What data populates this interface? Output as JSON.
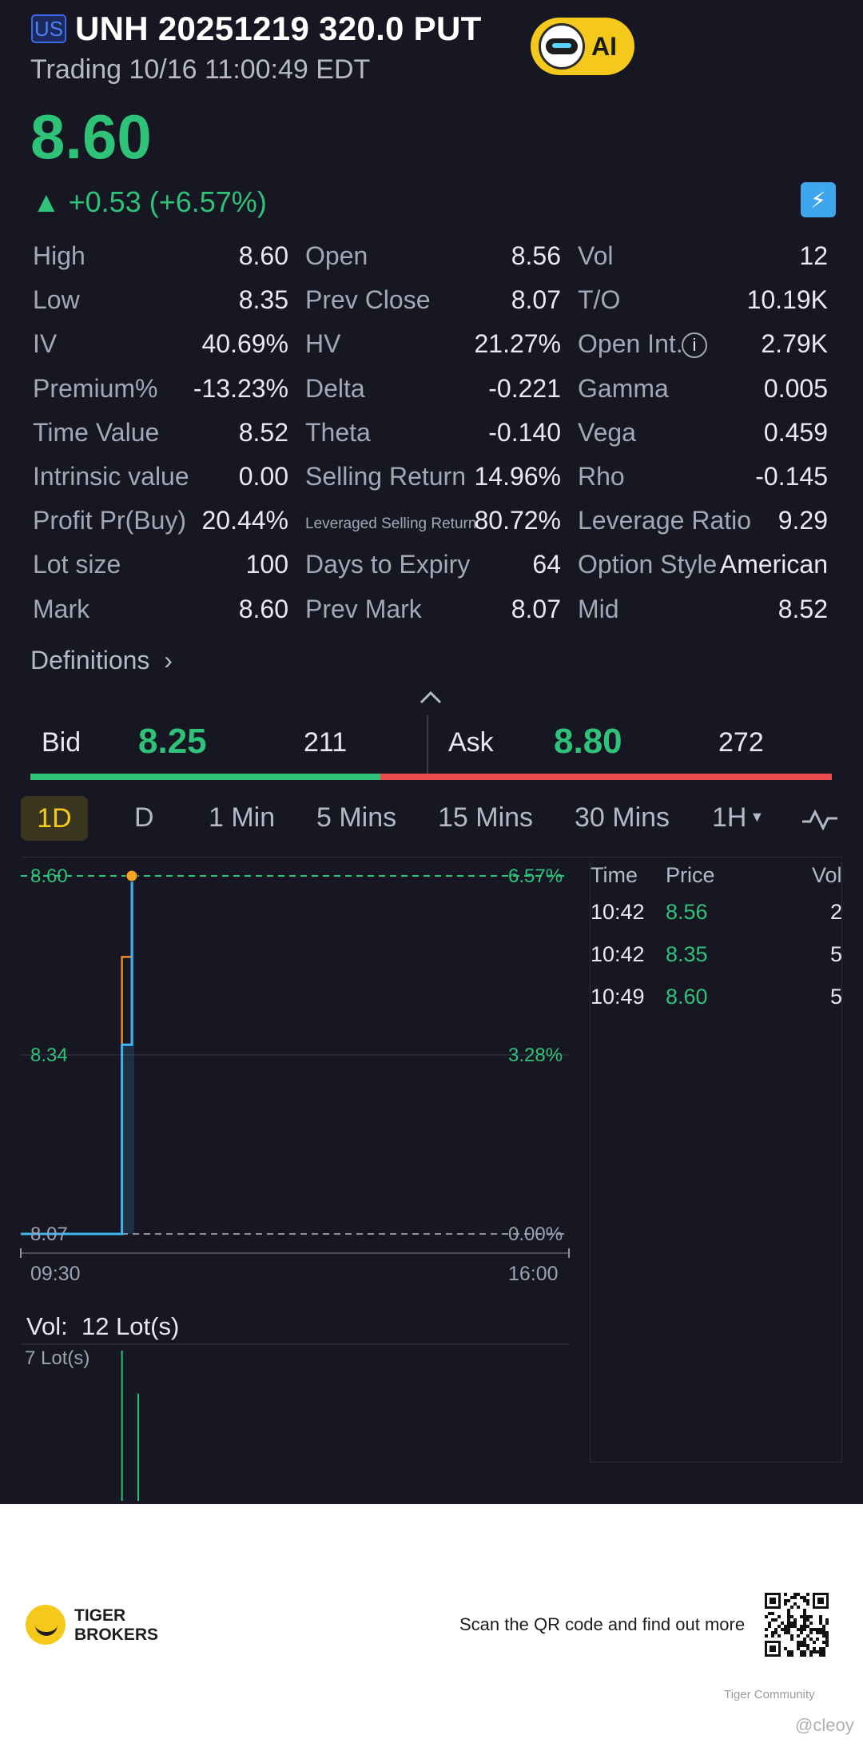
{
  "header": {
    "market_badge": "US",
    "title": "UNH 20251219 320.0 PUT",
    "status": "Trading 10/16 11:00:49 EDT",
    "ai_label": "AI"
  },
  "quote": {
    "price": "8.60",
    "change": "▲ +0.53 (+6.57%)",
    "lightning_icon": "lightning-icon"
  },
  "stats": [
    [
      {
        "label": "High",
        "value": "8.60"
      },
      {
        "label": "Open",
        "value": "8.56"
      },
      {
        "label": "Vol",
        "value": "12"
      }
    ],
    [
      {
        "label": "Low",
        "value": "8.35"
      },
      {
        "label": "Prev Close",
        "value": "8.07"
      },
      {
        "label": "T/O",
        "value": "10.19K"
      }
    ],
    [
      {
        "label": "IV",
        "value": "40.69%"
      },
      {
        "label": "HV",
        "value": "21.27%"
      },
      {
        "label": "Open Int.",
        "value": "2.79K"
      }
    ],
    [
      {
        "label": "Premium%",
        "value": "-13.23%"
      },
      {
        "label": "Delta",
        "value": "-0.221"
      },
      {
        "label": "Gamma",
        "value": "0.005"
      }
    ],
    [
      {
        "label": "Time Value",
        "value": "8.52"
      },
      {
        "label": "Theta",
        "value": "-0.140"
      },
      {
        "label": "Vega",
        "value": "0.459"
      }
    ],
    [
      {
        "label": "Intrinsic value",
        "value": "0.00"
      },
      {
        "label": "Selling Return",
        "value": "14.96%"
      },
      {
        "label": "Rho",
        "value": "-0.145"
      }
    ],
    [
      {
        "label": "Profit Pr(Buy)",
        "value": "20.44%"
      },
      {
        "label": "Leveraged Selling Return",
        "value": "80.72%"
      },
      {
        "label": "Leverage Ratio",
        "value": "9.29"
      }
    ],
    [
      {
        "label": "Lot size",
        "value": "100"
      },
      {
        "label": "Days to Expiry",
        "value": "64"
      },
      {
        "label": "Option Style",
        "value": "American"
      }
    ],
    [
      {
        "label": "Mark",
        "value": "8.60"
      },
      {
        "label": "Prev Mark",
        "value": "8.07"
      },
      {
        "label": "Mid",
        "value": "8.52"
      }
    ]
  ],
  "definitions_label": "Definitions",
  "bid_ask": {
    "bid_label": "Bid",
    "bid_price": "8.25",
    "bid_size": "211",
    "ask_label": "Ask",
    "ask_price": "8.80",
    "ask_size": "272"
  },
  "tabs": [
    "1D",
    "D",
    "1 Min",
    "5 Mins",
    "15 Mins",
    "30 Mins",
    "1H"
  ],
  "chart_data": {
    "type": "line",
    "x_range": [
      "09:30",
      "16:00"
    ],
    "y_labels_left": [
      "8.60",
      "8.34",
      "8.07"
    ],
    "y_labels_right": [
      "6.57%",
      "3.28%",
      "0.00%"
    ],
    "ylim": [
      8.07,
      8.6
    ],
    "prev_close": 8.07,
    "price_series": [
      {
        "t": "09:30",
        "v": 8.07
      },
      {
        "t": "10:42",
        "v": 8.07
      },
      {
        "t": "10:42",
        "v": 8.35
      },
      {
        "t": "10:49",
        "v": 8.35
      },
      {
        "t": "10:49",
        "v": 8.6
      }
    ],
    "avg_series": [
      {
        "t": "10:42",
        "v": 8.35
      },
      {
        "t": "10:42",
        "v": 8.48
      },
      {
        "t": "10:49",
        "v": 8.48
      },
      {
        "t": "10:49",
        "v": 8.51
      }
    ],
    "volume": {
      "label": "Vol:",
      "total": "12 Lot(s)",
      "max_label": "7 Lot(s)",
      "bars": [
        {
          "t": "10:42",
          "v": 7
        },
        {
          "t": "10:49",
          "v": 5
        }
      ]
    },
    "colors": {
      "price": "#3fb6f2",
      "average": "#f08a24",
      "positive": "#2fc279"
    }
  },
  "trades": {
    "headers": [
      "Time",
      "Price",
      "Vol"
    ],
    "rows": [
      {
        "time": "10:42",
        "price": "8.56",
        "vol": "2"
      },
      {
        "time": "10:42",
        "price": "8.35",
        "vol": "5"
      },
      {
        "time": "10:49",
        "price": "8.60",
        "vol": "5"
      }
    ]
  },
  "footer": {
    "brand_line1": "TIGER",
    "brand_line2": "BROKERS",
    "scan_text": "Scan the QR code and find out more",
    "community": "Tiger Community",
    "handle": "@cleoy"
  }
}
